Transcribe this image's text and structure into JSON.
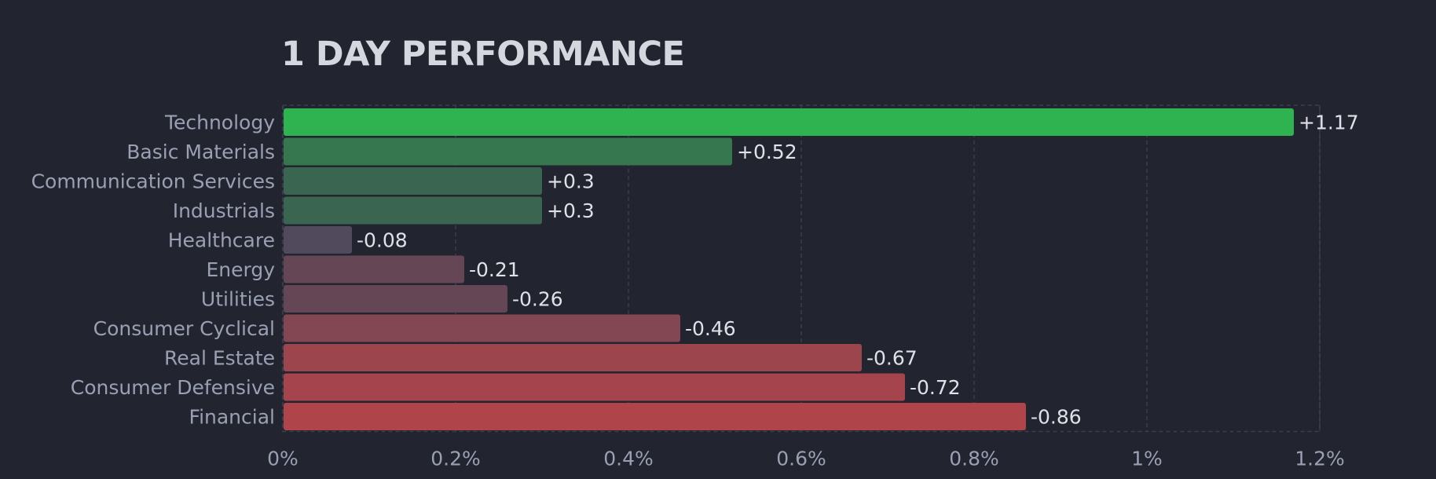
{
  "chart_data": {
    "type": "bar",
    "orientation": "horizontal",
    "title": "1 DAY PERFORMANCE",
    "categories": [
      "Technology",
      "Basic Materials",
      "Communication Services",
      "Industrials",
      "Healthcare",
      "Energy",
      "Utilities",
      "Consumer Cyclical",
      "Real Estate",
      "Consumer Defensive",
      "Financial"
    ],
    "values": [
      1.17,
      0.52,
      0.3,
      0.3,
      -0.08,
      -0.21,
      -0.26,
      -0.46,
      -0.67,
      -0.72,
      -0.86
    ],
    "value_labels": [
      "+1.17",
      "+0.52",
      "+0.3",
      "+0.3",
      "-0.08",
      "-0.21",
      "-0.26",
      "-0.46",
      "-0.67",
      "-0.72",
      "-0.86"
    ],
    "bar_colors": [
      "#2eb350",
      "#37774f",
      "#3a6651",
      "#3a6651",
      "#514a5c",
      "#654654",
      "#654654",
      "#834653",
      "#9d454c",
      "#a6444e",
      "#b0444b"
    ],
    "xlim": [
      0,
      1.2
    ],
    "x_ticks": [
      0,
      0.2,
      0.4,
      0.6,
      0.8,
      1,
      1.2
    ],
    "x_tick_labels": [
      "0%",
      "0.2%",
      "0.4%",
      "0.6%",
      "0.8%",
      "1%",
      "1.2%"
    ],
    "xlabel": "",
    "ylabel": "",
    "grid": true,
    "bar_length": "absolute value"
  }
}
